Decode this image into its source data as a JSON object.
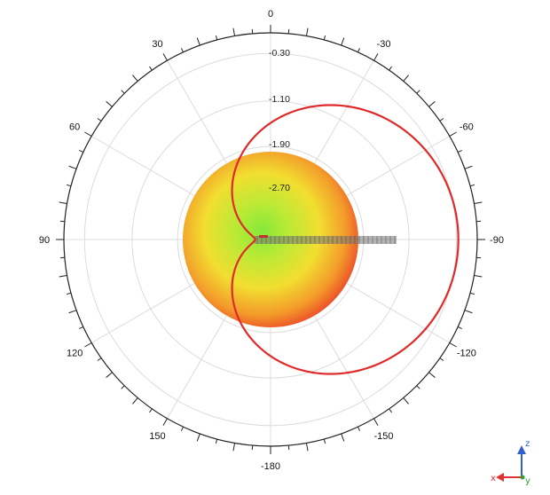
{
  "angle_labels": [
    "0",
    "-30",
    "-60",
    "-90",
    "-120",
    "-150",
    "-180",
    "150",
    "120",
    "90",
    "60",
    "30"
  ],
  "angle_values": [
    0,
    -30,
    -60,
    -90,
    -120,
    -150,
    -180,
    150,
    120,
    90,
    60,
    30
  ],
  "ring_labels": [
    "-0.30",
    "-1.10",
    "-1.90",
    "-2.70"
  ],
  "pattern_curve": {
    "color": "#e02a2a",
    "max_level": -0.3,
    "min_level": -3.5,
    "null_direction_deg": 90
  },
  "sphere": {
    "edge_color": "#e8342a",
    "mid_color": "#f4d82e",
    "center_color": "#8ee83a"
  },
  "probe_color": "#555555",
  "axes_indicator": {
    "x_label": "x",
    "y_label": "y",
    "z_label": "z",
    "x_color": "#e03030",
    "y_color": "#30a030",
    "z_color": "#3060d0"
  }
}
